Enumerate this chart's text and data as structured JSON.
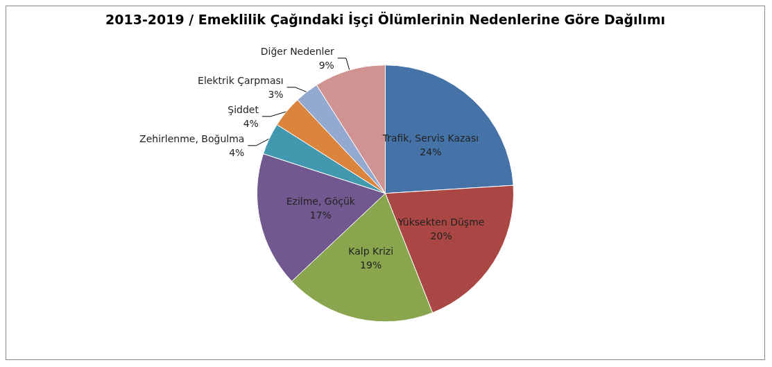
{
  "chart_data": {
    "type": "pie",
    "title": "2013-2019 / Emeklilik Çağındaki İşçi Ölümlerinin Nedenlerine Göre Dağılımı",
    "categories": [
      "Trafik, Servis Kazası",
      "Yüksekten Düşme",
      "Kalp Krizi",
      "Ezilme, Göçük",
      "Zehirlenme, Boğulma",
      "Şiddet",
      "Elektrik Çarpması",
      "Diğer Nedenler"
    ],
    "values": [
      24,
      20,
      19,
      17,
      4,
      4,
      3,
      9
    ],
    "colors": [
      "#4572a7",
      "#aa4643",
      "#89a54e",
      "#71588f",
      "#4198af",
      "#db843d",
      "#93a9cf",
      "#d19392"
    ],
    "value_labels": [
      "24%",
      "20%",
      "19%",
      "17%",
      "4%",
      "4%",
      "3%",
      "9%"
    ],
    "legend": false
  }
}
